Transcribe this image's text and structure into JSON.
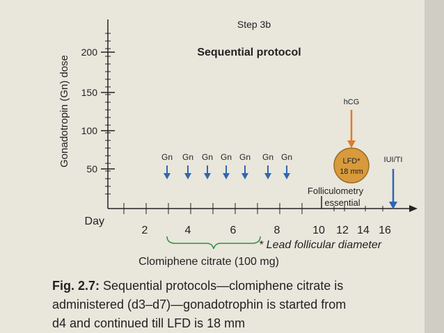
{
  "figure": {
    "title": "Step 3b",
    "subtitle": "Sequential protocol",
    "y_axis": {
      "label": "Gonadotropin (Gn) dose",
      "ticks": [
        "200",
        "150",
        "100",
        "50"
      ]
    },
    "x_axis": {
      "label": "Day",
      "ticks": [
        "2",
        "4",
        "6",
        "8",
        "10",
        "12",
        "14",
        "16"
      ]
    },
    "gn_labels": [
      "Gn",
      "Gn",
      "Gn",
      "Gn",
      "Gn",
      "Gn",
      "Gn"
    ],
    "hcg": "hCG",
    "lfd": [
      "LFD*",
      "18 mm"
    ],
    "iui": "IUI/TI",
    "folliculometry": [
      "Folliculometry",
      "essential"
    ],
    "footnote": "* Lead follicular diameter",
    "clomiphene": "Clomiphene citrate (100 mg)"
  },
  "caption": {
    "label": "Fig. 2.7:",
    "lines": [
      "Sequential protocols—clomiphene citrate is",
      "administered (d3–d7)—gonadotrophin is started from",
      "d4 and continued till LFD is 18 mm"
    ]
  }
}
